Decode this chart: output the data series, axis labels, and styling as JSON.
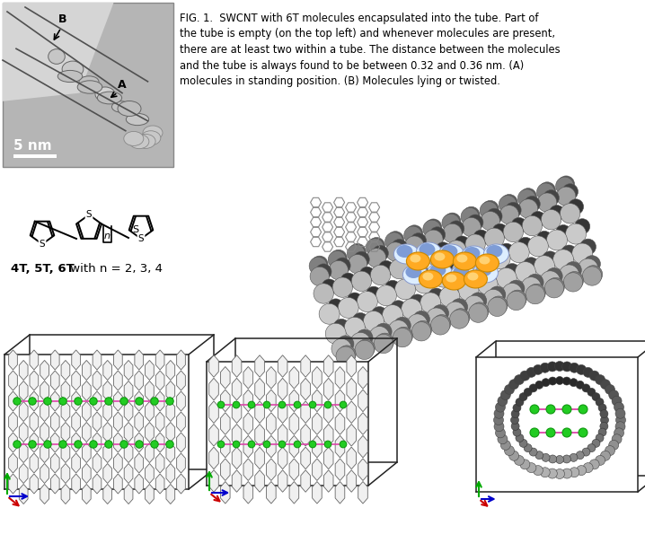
{
  "caption_line1": "FIG. 1.  SWCNT with 6T molecules encapsulated into the tube. Part of",
  "caption_line2": "the tube is empty (on the top left) and whenever molecules are present,",
  "caption_line3": "there are at least two within a tube. The distance between the molecules",
  "caption_line4": "and the tube is always found to be between 0.32 and 0.36 nm. (A)",
  "caption_line5": "molecules in standing position. (B) Molecules lying or twisted.",
  "scale_bar_text": "5 nm",
  "label_bold": "4T, 5T, 6T",
  "label_normal": " with n = 2, 3, 4",
  "bg_color": "#ffffff",
  "fig_width": 7.18,
  "fig_height": 6.05,
  "dpi": 100,
  "tem_bg": "#aaaaaa",
  "tem_light": "#cccccc",
  "tem_dark": "#888888"
}
